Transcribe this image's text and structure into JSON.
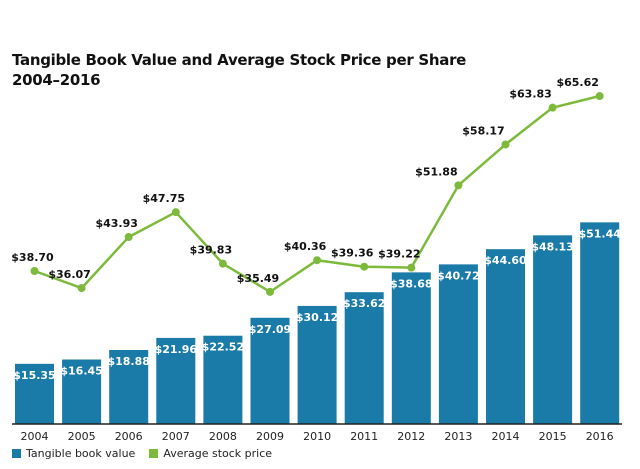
{
  "chart_data": {
    "type": "bar+line",
    "title": "Tangible Book Value and Average Stock Price per Share",
    "subtitle": "2004–2016",
    "xlabel": "",
    "ylabel": "",
    "grid": false,
    "legend_position": "bottom-left",
    "categories": [
      "2004",
      "2005",
      "2006",
      "2007",
      "2008",
      "2009",
      "2010",
      "2011",
      "2012",
      "2013",
      "2014",
      "2015",
      "2016"
    ],
    "series": [
      {
        "name": "Tangible book value",
        "type": "bar",
        "color": "#1a7aa8",
        "values": [
          15.35,
          16.45,
          18.88,
          21.96,
          22.52,
          27.09,
          30.12,
          33.62,
          38.68,
          40.72,
          44.6,
          48.13,
          51.44
        ],
        "labels": [
          "$15.35",
          "$16.45",
          "$18.88",
          "$21.96",
          "$22.52",
          "$27.09",
          "$30.12",
          "$33.62",
          "$38.68",
          "$40.72",
          "$44.60",
          "$48.13",
          "$51.44"
        ]
      },
      {
        "name": "Average stock price",
        "type": "line",
        "color": "#7dba3c",
        "values": [
          38.7,
          36.07,
          43.93,
          47.75,
          39.83,
          35.49,
          40.36,
          39.36,
          39.22,
          51.88,
          58.17,
          63.83,
          65.62
        ],
        "labels": [
          "$38.70",
          "$36.07",
          "$43.93",
          "$47.75",
          "$39.83",
          "$35.49",
          "$40.36",
          "$39.36",
          "$39.22",
          "$51.88",
          "$58.17",
          "$63.83",
          "$65.62"
        ]
      }
    ]
  },
  "legend": {
    "items": [
      {
        "label": "Tangible book value",
        "color": "#1a7aa8"
      },
      {
        "label": "Average stock price",
        "color": "#7dba3c"
      }
    ]
  }
}
